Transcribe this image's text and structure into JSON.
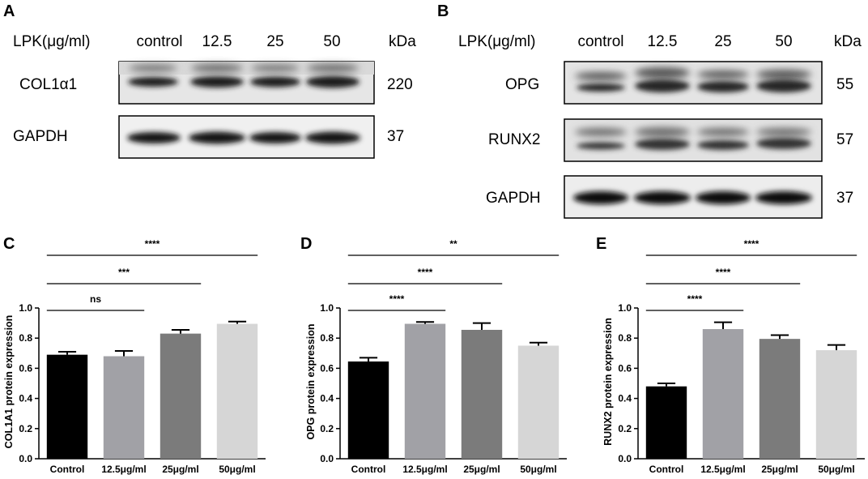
{
  "figure_panels": {
    "A": {
      "panel_label": "A",
      "header_label": "LPK(μg/ml)",
      "lanes": [
        "control",
        "12.5",
        "25",
        "50"
      ],
      "unit_header": "kDa",
      "blots": [
        {
          "protein": "COL1α1",
          "kda": "220"
        },
        {
          "protein": "GAPDH",
          "kda": "37"
        }
      ]
    },
    "B": {
      "panel_label": "B",
      "header_label": "LPK(μg/ml)",
      "lanes": [
        "control",
        "12.5",
        "25",
        "50"
      ],
      "unit_header": "kDa",
      "blots": [
        {
          "protein": "OPG",
          "kda": "55"
        },
        {
          "protein": "RUNX2",
          "kda": "57"
        },
        {
          "protein": "GAPDH",
          "kda": "37"
        }
      ]
    }
  },
  "colors": {
    "control_bar": "#000000",
    "dose_12_5_bar": "#a1a1a6",
    "dose_25_bar": "#7b7b7b",
    "dose_50_bar": "#d6d6d6"
  },
  "chart_data": [
    {
      "type": "bar",
      "panel_label": "C",
      "categories": [
        "Control",
        "12.5μg/ml",
        "25μg/ml",
        "50μg/ml"
      ],
      "values": [
        0.69,
        0.68,
        0.83,
        0.895
      ],
      "errors": [
        0.02,
        0.035,
        0.025,
        0.015
      ],
      "ylabel": "COL1A1 protein expression",
      "ylim": [
        0,
        1.0
      ],
      "yticks": [
        "0.0",
        "0.2",
        "0.4",
        "0.6",
        "0.8",
        "1.0"
      ],
      "significance": [
        {
          "from": 0,
          "to": 1,
          "label": "ns"
        },
        {
          "from": 0,
          "to": 2,
          "label": "***"
        },
        {
          "from": 0,
          "to": 3,
          "label": "****"
        }
      ]
    },
    {
      "type": "bar",
      "panel_label": "D",
      "categories": [
        "Control",
        "12.5μg/ml",
        "25μg/ml",
        "50μg/ml"
      ],
      "values": [
        0.645,
        0.895,
        0.855,
        0.75
      ],
      "errors": [
        0.025,
        0.012,
        0.045,
        0.02
      ],
      "ylabel": "OPG protein expression",
      "ylim": [
        0,
        1.0
      ],
      "yticks": [
        "0.0",
        "0.2",
        "0.4",
        "0.6",
        "0.8",
        "1.0"
      ],
      "significance": [
        {
          "from": 0,
          "to": 1,
          "label": "****"
        },
        {
          "from": 0,
          "to": 2,
          "label": "****"
        },
        {
          "from": 0,
          "to": 3,
          "label": "**"
        }
      ]
    },
    {
      "type": "bar",
      "panel_label": "E",
      "categories": [
        "Control",
        "12.5μg/ml",
        "25μg/ml",
        "50μg/ml"
      ],
      "values": [
        0.48,
        0.86,
        0.795,
        0.72
      ],
      "errors": [
        0.02,
        0.045,
        0.025,
        0.035
      ],
      "ylabel": "RUNX2 protein expression",
      "ylim": [
        0,
        1.0
      ],
      "yticks": [
        "0.0",
        "0.2",
        "0.4",
        "0.6",
        "0.8",
        "1.0"
      ],
      "significance": [
        {
          "from": 0,
          "to": 1,
          "label": "****"
        },
        {
          "from": 0,
          "to": 2,
          "label": "****"
        },
        {
          "from": 0,
          "to": 3,
          "label": "****"
        }
      ]
    }
  ]
}
